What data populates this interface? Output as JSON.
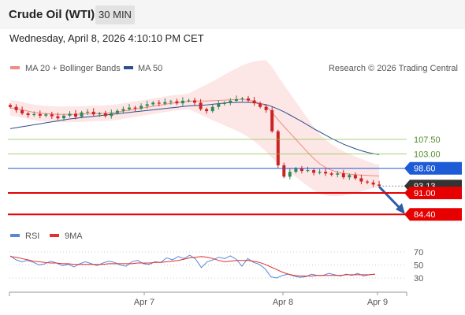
{
  "header": {
    "title": "Crude Oil (WTI)",
    "timeframe": "30 MIN"
  },
  "date_line": "Wednesday, April 8, 2026 4:10:10 PM CET",
  "legend": {
    "ma20": "MA 20 + Bollinger Bands",
    "ma50": "MA 50",
    "credit": "Research © 2026 Trading Central"
  },
  "rsi_legend": {
    "rsi": "RSI",
    "ma9": "9MA"
  },
  "colors": {
    "ma20": "#f28b82",
    "ma50": "#2c4f8f",
    "candle_up": "#2e8b57",
    "candle_down": "#cc2222",
    "resistance": "#8bc34a",
    "pivot": "#1e5bd6",
    "support": "#e60000",
    "band": "#fde2e2",
    "rsi": "#5b86d6",
    "rsi_ma": "#e03030"
  },
  "chart_data": [
    {
      "type": "candlestick",
      "title": "",
      "x_ticks": [
        "Apr 7",
        "Apr 8",
        "Apr 9"
      ],
      "ylim": [
        81.5,
        130
      ],
      "current_price": 93.13,
      "levels": [
        {
          "label": "107.50",
          "value": 107.5,
          "kind": "resistance"
        },
        {
          "label": "103.00",
          "value": 103.0,
          "kind": "resistance"
        },
        {
          "label": "98.60",
          "value": 98.6,
          "kind": "pivot"
        },
        {
          "label": "93.13",
          "value": 93.13,
          "kind": "last"
        },
        {
          "label": "91.00",
          "value": 91.0,
          "kind": "support"
        },
        {
          "label": "84.40",
          "value": 84.4,
          "kind": "support"
        }
      ],
      "close_approx": [
        117.5,
        116.5,
        115.5,
        115.0,
        115.3,
        114.8,
        115.2,
        114.6,
        114.0,
        114.8,
        115.4,
        114.5,
        115.8,
        116.0,
        115.2,
        115.5,
        114.7,
        115.6,
        116.3,
        116.8,
        117.3,
        117.0,
        117.8,
        118.3,
        118.8,
        118.5,
        119.0,
        119.2,
        118.6,
        119.4,
        119.5,
        118.8,
        116.8,
        116.2,
        117.5,
        118.4,
        118.8,
        119.4,
        119.9,
        120.1,
        119.5,
        118.6,
        117.5,
        116.5,
        110.0,
        99.5,
        96.0,
        97.5,
        98.5,
        97.8,
        98.0,
        97.2,
        97.5,
        97.0,
        96.6,
        97.0,
        95.8,
        96.5,
        95.5,
        94.5,
        94.2,
        93.6,
        93.2
      ],
      "ma20_approx": [
        117.2,
        117.0,
        116.6,
        116.2,
        115.8,
        115.6,
        115.4,
        115.3,
        115.2,
        115.2,
        115.2,
        115.2,
        115.3,
        115.4,
        115.5,
        115.5,
        115.6,
        115.7,
        115.9,
        116.2,
        116.5,
        116.8,
        117.1,
        117.4,
        117.7,
        118.0,
        118.3,
        118.6,
        118.8,
        119.0,
        119.2,
        119.3,
        119.3,
        119.3,
        119.4,
        119.5,
        119.6,
        119.7,
        119.8,
        119.8,
        119.6,
        119.2,
        118.6,
        117.8,
        115.8,
        113.5,
        111.5,
        109.5,
        107.5,
        105.5,
        103.5,
        101.6,
        100.0,
        98.8,
        98.0,
        97.4,
        97.0,
        96.8,
        96.6,
        96.5,
        96.4,
        96.3,
        96.2
      ],
      "ma50_approx": [
        110.8,
        111.1,
        111.4,
        111.7,
        112.0,
        112.3,
        112.6,
        112.9,
        113.2,
        113.5,
        113.8,
        114.0,
        114.2,
        114.4,
        114.6,
        114.8,
        115.0,
        115.2,
        115.4,
        115.6,
        115.8,
        116.0,
        116.2,
        116.4,
        116.6,
        116.8,
        117.0,
        117.2,
        117.4,
        117.6,
        117.8,
        117.9,
        118.0,
        118.1,
        118.3,
        118.5,
        118.7,
        118.8,
        118.9,
        118.9,
        118.9,
        118.8,
        118.5,
        118.2,
        117.6,
        116.8,
        116.0,
        115.0,
        114.0,
        113.0,
        111.9,
        110.8,
        109.8,
        108.8,
        107.8,
        106.9,
        106.0,
        105.3,
        104.6,
        104.0,
        103.5,
        103.1,
        102.8
      ]
    },
    {
      "type": "line",
      "title": "",
      "y_ticks": [
        70,
        50,
        30
      ],
      "ylim": [
        20,
        80
      ],
      "series": [
        {
          "name": "RSI",
          "values": [
            64,
            58,
            55,
            57,
            54,
            50,
            52,
            56,
            53,
            49,
            51,
            47,
            52,
            55,
            52,
            49,
            53,
            56,
            54,
            50,
            48,
            55,
            57,
            52,
            51,
            55,
            54,
            61,
            58,
            63,
            60,
            65,
            59,
            46,
            55,
            58,
            62,
            60,
            64,
            59,
            48,
            60,
            54,
            51,
            44,
            32,
            30,
            34,
            36,
            33,
            31,
            32,
            36,
            34,
            34,
            37,
            35,
            33,
            36,
            34,
            37,
            33,
            35,
            36
          ]
        },
        {
          "name": "9MA",
          "values": [
            63,
            62,
            60,
            58,
            56,
            55,
            54,
            53,
            53,
            52,
            52,
            51,
            51,
            51,
            51,
            51,
            51,
            52,
            52,
            52,
            52,
            52,
            53,
            53,
            53,
            54,
            54,
            55,
            56,
            57,
            59,
            61,
            62,
            63,
            62,
            60,
            57,
            55,
            56,
            57,
            57,
            57,
            56,
            54,
            51,
            47,
            43,
            39,
            36,
            34,
            33,
            33,
            33,
            34,
            34,
            34,
            34,
            34,
            35,
            35,
            35,
            35,
            35,
            36
          ]
        }
      ]
    }
  ]
}
